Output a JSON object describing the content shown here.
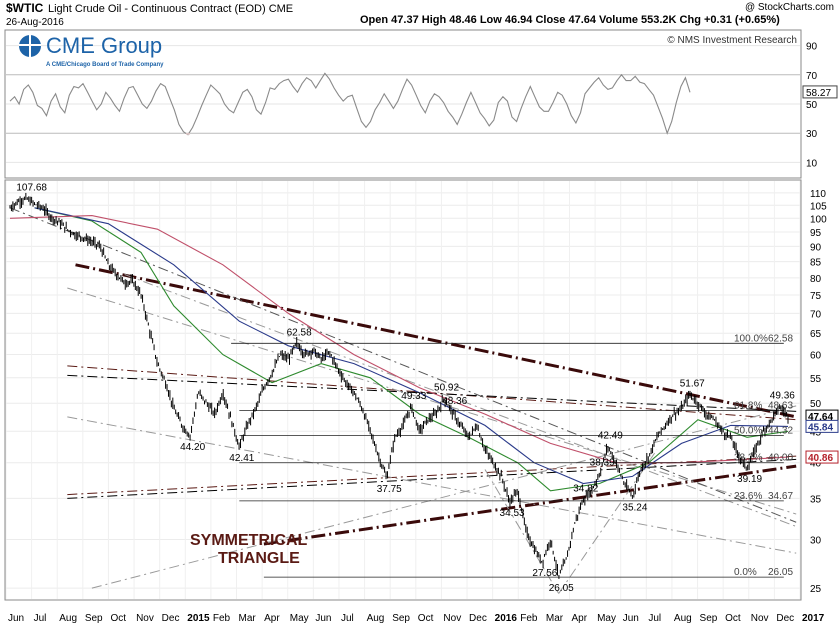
{
  "header": {
    "symbol": "$WTIC",
    "name": "Light Crude Oil - Continuous Contract (EOD) CME",
    "date": "26-Aug-2016",
    "credit": "@ StockCharts.com",
    "ohlc_text": "Open 47.37  High 48.46  Low 46.94  Close 47.64  Volume 553.2K  Chg +0.31 (+0.65%)",
    "change_arrow_color": "#2e9e2e"
  },
  "logo": {
    "name": "CME Group",
    "tagline": "A CME/Chicago Board of Trade Company"
  },
  "copyright": "© NMS Investment Research",
  "annotation": {
    "line1": "SYMMETRICAL",
    "line2": "TRIANGLE",
    "color": "#5a1a14"
  },
  "chart_data": [
    {
      "type": "line",
      "panel": "indicator",
      "title": "",
      "yticks": [
        10,
        30,
        50,
        70,
        90
      ],
      "ylim": [
        0,
        100
      ],
      "last_value_label": "58.27",
      "reference_levels": [
        30,
        70
      ],
      "values": [
        52,
        55,
        50,
        60,
        63,
        58,
        49,
        47,
        42,
        52,
        57,
        48,
        44,
        56,
        62,
        61,
        64,
        58,
        52,
        46,
        50,
        58,
        54,
        49,
        45,
        54,
        61,
        62,
        56,
        50,
        47,
        52,
        59,
        64,
        62,
        54,
        46,
        36,
        31,
        29,
        34,
        41,
        49,
        56,
        63,
        60,
        57,
        50,
        46,
        44,
        51,
        58,
        60,
        55,
        46,
        43,
        51,
        61,
        60,
        64,
        66,
        67,
        62,
        58,
        64,
        68,
        66,
        61,
        66,
        71,
        67,
        61,
        56,
        52,
        55,
        56,
        47,
        38,
        34,
        38,
        46,
        51,
        57,
        52,
        47,
        52,
        60,
        67,
        63,
        56,
        49,
        44,
        52,
        57,
        55,
        51,
        45,
        41,
        36,
        43,
        51,
        58,
        51,
        44,
        40,
        35,
        39,
        51,
        55,
        52,
        41,
        38,
        47,
        55,
        62,
        55,
        48,
        45,
        45,
        51,
        58,
        56,
        50,
        42,
        37,
        44,
        57,
        61,
        65,
        68,
        63,
        60,
        61,
        66,
        70,
        66,
        66,
        69,
        65,
        64,
        60,
        56,
        48,
        40,
        30,
        38,
        51,
        62,
        68,
        58
      ]
    },
    {
      "type": "candlestick",
      "panel": "price",
      "title": "Light Crude Oil - Continuous Contract (EOD) CME",
      "yscale": "log",
      "ylim": [
        24,
        115
      ],
      "yticks": [
        25,
        30,
        35,
        40,
        45,
        50,
        55,
        60,
        65,
        70,
        75,
        80,
        85,
        90,
        95,
        100,
        105,
        110
      ],
      "x_ticks": [
        "Jun",
        "Jul",
        "Aug",
        "Sep",
        "Oct",
        "Nov",
        "Dec",
        "2015",
        "Feb",
        "Mar",
        "Apr",
        "May",
        "Jun",
        "Jul",
        "Aug",
        "Sep",
        "Oct",
        "Nov",
        "Dec",
        "2016",
        "Feb",
        "Mar",
        "Apr",
        "May",
        "Jun",
        "Jul",
        "Aug",
        "Sep",
        "Oct",
        "Nov",
        "Dec",
        "2017"
      ],
      "price_path": [
        [
          0,
          104
        ],
        [
          1,
          106.5
        ],
        [
          2,
          107.68
        ],
        [
          3,
          105.5
        ],
        [
          4,
          104
        ],
        [
          5,
          100.5
        ],
        [
          6,
          98.5
        ],
        [
          7,
          96
        ],
        [
          8,
          94
        ],
        [
          9,
          93
        ],
        [
          10,
          91.5
        ],
        [
          11,
          90
        ],
        [
          12,
          84
        ],
        [
          13,
          81
        ],
        [
          14,
          78.5
        ],
        [
          15,
          79
        ],
        [
          16,
          75
        ],
        [
          17,
          66
        ],
        [
          18,
          58
        ],
        [
          19,
          54
        ],
        [
          20,
          49
        ],
        [
          21,
          46
        ],
        [
          22,
          44.2
        ],
        [
          23,
          52
        ],
        [
          24,
          50
        ],
        [
          25,
          48
        ],
        [
          26,
          52
        ],
        [
          27,
          47
        ],
        [
          28,
          42.41
        ],
        [
          29,
          46
        ],
        [
          30,
          49
        ],
        [
          31,
          53
        ],
        [
          32,
          56
        ],
        [
          33,
          60
        ],
        [
          34,
          59
        ],
        [
          35,
          62.58
        ],
        [
          36,
          60
        ],
        [
          37,
          61
        ],
        [
          38,
          59
        ],
        [
          39,
          60.5
        ],
        [
          40,
          57
        ],
        [
          41,
          54
        ],
        [
          42,
          52
        ],
        [
          43,
          49
        ],
        [
          44,
          45
        ],
        [
          45,
          41
        ],
        [
          46,
          37.75
        ],
        [
          47,
          44
        ],
        [
          48,
          46
        ],
        [
          49,
          49.33
        ],
        [
          50,
          45
        ],
        [
          51,
          47
        ],
        [
          52,
          48
        ],
        [
          53,
          50.92
        ],
        [
          54,
          48.36
        ],
        [
          55,
          46
        ],
        [
          56,
          44
        ],
        [
          57,
          46
        ],
        [
          58,
          42
        ],
        [
          59,
          40
        ],
        [
          60,
          38
        ],
        [
          61,
          34.53
        ],
        [
          62,
          36
        ],
        [
          63,
          31
        ],
        [
          64,
          29
        ],
        [
          65,
          27.56
        ],
        [
          66,
          30
        ],
        [
          67,
          26.05
        ],
        [
          68,
          28
        ],
        [
          69,
          32
        ],
        [
          70,
          34.82
        ],
        [
          71,
          36
        ],
        [
          72,
          38.39
        ],
        [
          73,
          42.49
        ],
        [
          74,
          40
        ],
        [
          75,
          37
        ],
        [
          76,
          35.24
        ],
        [
          77,
          39
        ],
        [
          78,
          41
        ],
        [
          79,
          44
        ],
        [
          80,
          46
        ],
        [
          81,
          48
        ],
        [
          82,
          49
        ],
        [
          83,
          51.67
        ],
        [
          84,
          50
        ],
        [
          85,
          48
        ],
        [
          86,
          47
        ],
        [
          87,
          45
        ],
        [
          88,
          44
        ],
        [
          89,
          41
        ],
        [
          90,
          39.19
        ],
        [
          91,
          42
        ],
        [
          92,
          45
        ],
        [
          93,
          47
        ],
        [
          94,
          49.36
        ],
        [
          95,
          47.64
        ]
      ],
      "price_path_note": "",
      "last_value_labels": [
        {
          "value": 47.64,
          "text": "47.64",
          "color": "#000000"
        },
        {
          "value": 45.84,
          "text": "45.84",
          "color": "#2a3a8a"
        },
        {
          "value": 40.86,
          "text": "40.86",
          "color": "#b4202a"
        }
      ],
      "price_labels": [
        {
          "text": "107.68",
          "value": 107.68
        },
        {
          "text": "54.24",
          "value": 54.24
        },
        {
          "text": "44.20",
          "value": 44.2
        },
        {
          "text": "42.41",
          "value": 42.41
        },
        {
          "text": "62.58",
          "value": 62.58
        },
        {
          "text": "49.33",
          "value": 49.33
        },
        {
          "text": "50.92",
          "value": 50.92
        },
        {
          "text": "48.36",
          "value": 48.36
        },
        {
          "text": "37.75",
          "value": 37.75
        },
        {
          "text": "38.39",
          "value": 38.39
        },
        {
          "text": "34.82",
          "value": 34.82
        },
        {
          "text": "34.53",
          "value": 34.53
        },
        {
          "text": "27.56",
          "value": 27.56
        },
        {
          "text": "26.05",
          "value": 26.05
        },
        {
          "text": "42.49",
          "value": 42.49
        },
        {
          "text": "35.24",
          "value": 35.24
        },
        {
          "text": "51.67",
          "value": 51.67
        },
        {
          "text": "49.36",
          "value": 49.36
        },
        {
          "text": "39.19",
          "value": 39.19
        }
      ],
      "fibonacci_levels": [
        {
          "label": "100.0%",
          "value": 62.58,
          "text": "62.58"
        },
        {
          "label": "61.8%",
          "value": 48.63,
          "text": "48.63"
        },
        {
          "label": "50.0%",
          "value": 44.32,
          "text": "44.32"
        },
        {
          "label": "38.2%",
          "value": 40.0,
          "text": "40.00"
        },
        {
          "label": "23.6%",
          "value": 34.67,
          "text": "34.67"
        },
        {
          "label": "0.0%",
          "value": 26.05,
          "text": "26.05"
        }
      ],
      "moving_averages": [
        {
          "color": "#2e8a2e",
          "path": [
            [
              3,
              104
            ],
            [
              10,
              99
            ],
            [
              16,
              88
            ],
            [
              20,
              72
            ],
            [
              26,
              60
            ],
            [
              32,
              54
            ],
            [
              38,
              58
            ],
            [
              44,
              55
            ],
            [
              50,
              48
            ],
            [
              56,
              44
            ],
            [
              62,
              40
            ],
            [
              66,
              36
            ],
            [
              72,
              37
            ],
            [
              78,
              40
            ],
            [
              84,
              47
            ],
            [
              90,
              44
            ],
            [
              95,
              45
            ]
          ]
        },
        {
          "color": "#2a3a8a",
          "path": [
            [
              3,
              104
            ],
            [
              12,
              98
            ],
            [
              20,
              84
            ],
            [
              28,
              68
            ],
            [
              34,
              62
            ],
            [
              42,
              58
            ],
            [
              50,
              52
            ],
            [
              58,
              46
            ],
            [
              64,
              40
            ],
            [
              70,
              37
            ],
            [
              76,
              38
            ],
            [
              82,
              43
            ],
            [
              88,
              46
            ],
            [
              95,
              45.84
            ]
          ]
        },
        {
          "color": "#c0506a",
          "path": [
            [
              0,
              100
            ],
            [
              10,
              101
            ],
            [
              18,
              96
            ],
            [
              26,
              84
            ],
            [
              34,
              70
            ],
            [
              42,
              60
            ],
            [
              50,
              53
            ],
            [
              58,
              48
            ],
            [
              66,
              43
            ],
            [
              74,
              40
            ],
            [
              82,
              40
            ],
            [
              90,
              40.5
            ],
            [
              95,
              40.86
            ]
          ]
        }
      ],
      "trendlines": [
        {
          "style": "thick-dashed",
          "color": "#3a0a0a",
          "from": [
            8,
            84
          ],
          "to": [
            96,
            47.5
          ]
        },
        {
          "style": "thick-dashed",
          "color": "#3a0a0a",
          "from": [
            31,
            29.5
          ],
          "to": [
            96,
            39.5
          ]
        },
        {
          "style": "dashdot",
          "color": "#5a1a14",
          "from": [
            7,
            57.5
          ],
          "to": [
            96,
            47
          ]
        },
        {
          "style": "dashdot",
          "color": "#000000",
          "from": [
            7,
            55.5
          ],
          "to": [
            96,
            48.5
          ]
        },
        {
          "style": "dashdot",
          "color": "#5a1a14",
          "from": [
            7,
            35.5
          ],
          "to": [
            96,
            41
          ]
        },
        {
          "style": "dashdot",
          "color": "#000000",
          "from": [
            7,
            35.0
          ],
          "to": [
            96,
            40.5
          ]
        },
        {
          "style": "dashdot",
          "color": "#999999",
          "from": [
            7,
            77
          ],
          "to": [
            96,
            33
          ]
        },
        {
          "style": "dashdot",
          "color": "#999999",
          "from": [
            7,
            47.5
          ],
          "to": [
            96,
            28.5
          ]
        },
        {
          "style": "dashdot",
          "color": "#999999",
          "from": [
            14,
            81
          ],
          "to": [
            96,
            31.5
          ]
        },
        {
          "style": "dashdot",
          "color": "#555555",
          "from": [
            0,
            104
          ],
          "to": [
            96,
            32
          ]
        },
        {
          "style": "dashdot",
          "color": "#999999",
          "from": [
            10,
            25
          ],
          "to": [
            96,
            49.5
          ]
        },
        {
          "style": "dashdot",
          "color": "#999999",
          "from": [
            58,
            39
          ],
          "to": [
            67,
            24.5
          ]
        },
        {
          "style": "dashdot",
          "color": "#999999",
          "from": [
            67,
            24.5
          ],
          "to": [
            79,
            42
          ]
        }
      ]
    }
  ]
}
